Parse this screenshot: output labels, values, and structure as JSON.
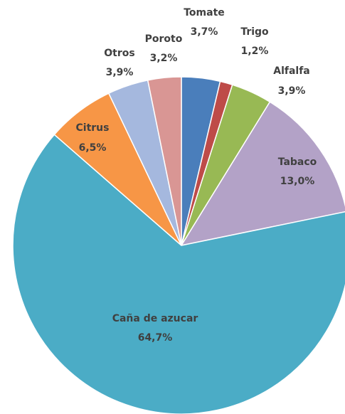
{
  "chart_data": {
    "type": "pie",
    "categories": [
      "Tomate",
      "Trigo",
      "Alfalfa",
      "Tabaco",
      "Caña de azucar",
      "Citrus",
      "Otros",
      "Poroto"
    ],
    "values": [
      3.7,
      1.2,
      3.9,
      13.0,
      64.7,
      6.5,
      3.9,
      3.2
    ],
    "value_labels": [
      "3,7%",
      "1,2%",
      "3,9%",
      "13,0%",
      "64,7%",
      "6,5%",
      "3,9%",
      "3,2%"
    ],
    "colors": [
      "#4a7ebb",
      "#be4b48",
      "#98b954",
      "#b3a2c7",
      "#4bacc6",
      "#f79646",
      "#a5b8de",
      "#d99694"
    ]
  }
}
